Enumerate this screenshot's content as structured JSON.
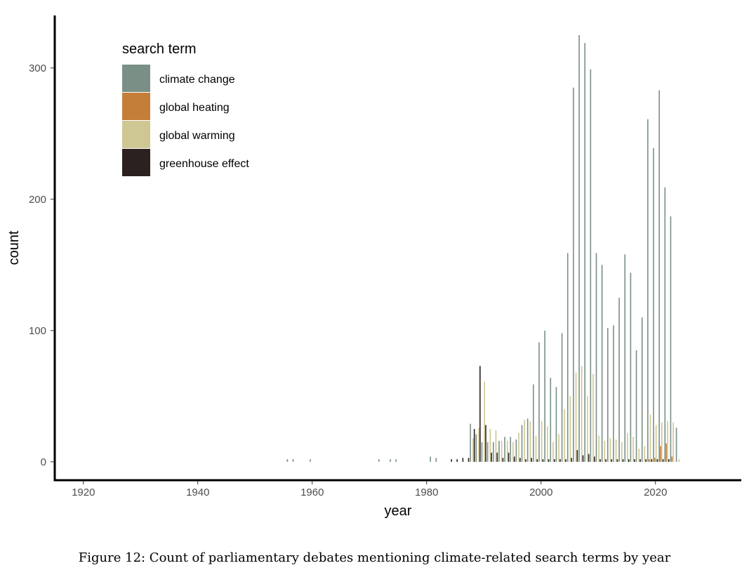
{
  "caption": "Figure 12: Count of parliamentary debates mentioning climate-related search terms by year",
  "chart_data": {
    "type": "bar",
    "xlabel": "year",
    "ylabel": "count",
    "xlim": [
      1915,
      2035
    ],
    "ylim": [
      -14,
      340
    ],
    "x_ticks": [
      1920,
      1940,
      1960,
      1980,
      2000,
      2020
    ],
    "y_ticks": [
      0,
      100,
      200,
      300
    ],
    "grid": false,
    "legend": {
      "title": "search term",
      "position": "top-left"
    },
    "series": [
      {
        "name": "climate change",
        "color": "#7a9087",
        "x": [
          1956,
          1957,
          1960,
          1972,
          1974,
          1975,
          1981,
          1982,
          1988,
          1989,
          1990,
          1991,
          1992,
          1993,
          1994,
          1995,
          1996,
          1997,
          1998,
          1999,
          2000,
          2001,
          2002,
          2003,
          2004,
          2005,
          2006,
          2007,
          2008,
          2009,
          2010,
          2011,
          2012,
          2013,
          2014,
          2015,
          2016,
          2017,
          2018,
          2019,
          2020,
          2021,
          2022,
          2023,
          2024
        ],
        "values": [
          2,
          2,
          2,
          2,
          2,
          2,
          4,
          3,
          29,
          21,
          15,
          15,
          15,
          16,
          19,
          19,
          17,
          28,
          33,
          59,
          91,
          100,
          64,
          57,
          98,
          159,
          285,
          325,
          319,
          299,
          159,
          150,
          102,
          104,
          125,
          158,
          144,
          85,
          110,
          261,
          239,
          283,
          209,
          187,
          26
        ]
      },
      {
        "name": "global heating",
        "color": "#c47e3a",
        "x": [
          2019,
          2020,
          2021,
          2022,
          2023
        ],
        "values": [
          2,
          3,
          12,
          14,
          4
        ]
      },
      {
        "name": "global warming",
        "color": "#cfc793",
        "x": [
          1988,
          1989,
          1990,
          1991,
          1992,
          1993,
          1994,
          1995,
          1996,
          1997,
          1998,
          1999,
          2000,
          2001,
          2002,
          2003,
          2004,
          2005,
          2006,
          2007,
          2008,
          2009,
          2010,
          2011,
          2012,
          2013,
          2014,
          2015,
          2016,
          2017,
          2018,
          2019,
          2020,
          2021,
          2022,
          2023,
          2024
        ],
        "values": [
          18,
          26,
          61,
          25,
          24,
          16,
          16,
          15,
          22,
          32,
          31,
          20,
          31,
          27,
          15,
          21,
          40,
          50,
          68,
          73,
          50,
          67,
          20,
          16,
          18,
          17,
          15,
          22,
          19,
          10,
          12,
          36,
          28,
          30,
          31,
          30,
          2
        ]
      },
      {
        "name": "greenhouse effect",
        "color": "#2b2220",
        "x": [
          1984,
          1985,
          1986,
          1987,
          1988,
          1989,
          1990,
          1991,
          1992,
          1993,
          1994,
          1995,
          1996,
          1997,
          1998,
          1999,
          2000,
          2001,
          2002,
          2003,
          2004,
          2005,
          2006,
          2007,
          2008,
          2009,
          2010,
          2011,
          2012,
          2013,
          2014,
          2015,
          2016,
          2017,
          2018,
          2019,
          2020,
          2021,
          2022
        ],
        "values": [
          2,
          2,
          3,
          3,
          25,
          73,
          28,
          7,
          7,
          3,
          7,
          4,
          3,
          2,
          3,
          2,
          2,
          2,
          2,
          2,
          2,
          3,
          9,
          5,
          6,
          4,
          2,
          2,
          2,
          2,
          2,
          2,
          2,
          2,
          2,
          2,
          2,
          2,
          2
        ]
      }
    ]
  }
}
